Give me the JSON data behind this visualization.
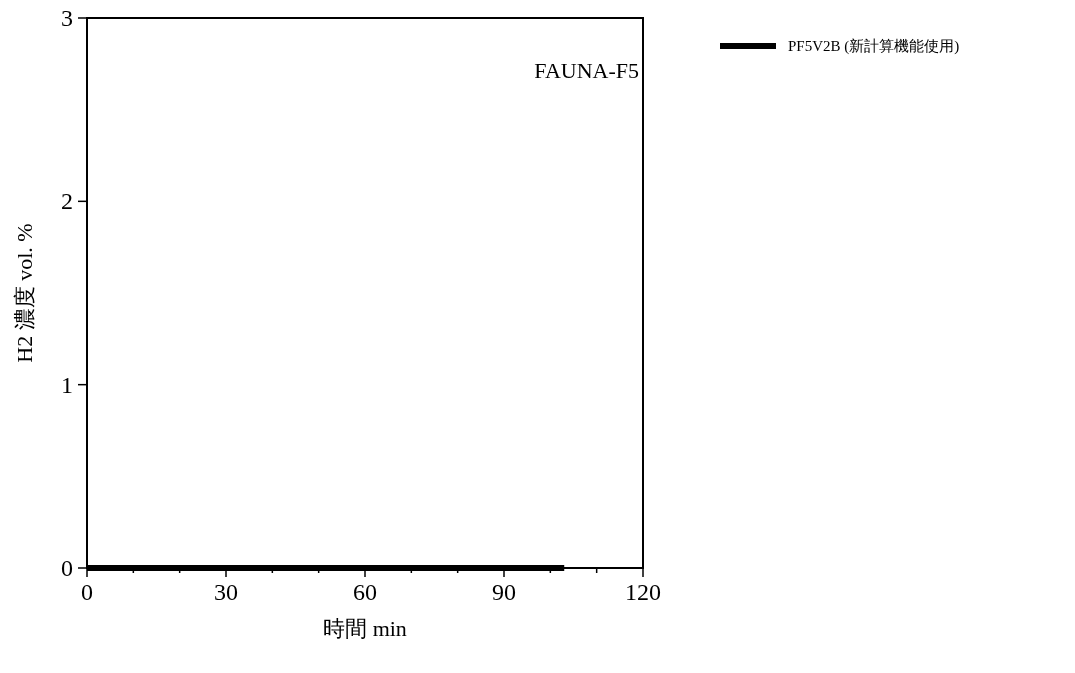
{
  "chart_data": {
    "type": "line",
    "xlabel": "時間 min",
    "ylabel": "H2 濃度 vol. %",
    "annotations": [
      "FAUNA-F5"
    ],
    "xlim": [
      0,
      120
    ],
    "xticks": [
      0,
      {
        "value": 10,
        "label": null
      },
      {
        "value": 20,
        "label": null
      },
      30,
      {
        "value": 40,
        "label": null
      },
      {
        "value": 50,
        "label": null
      },
      60,
      {
        "value": 70,
        "label": null
      },
      {
        "value": 80,
        "label": null
      },
      90,
      {
        "value": 100,
        "label": null
      },
      {
        "value": 110,
        "label": null
      },
      120
    ],
    "ylim": [
      0,
      3
    ],
    "yticks": [
      0,
      1,
      2,
      3
    ],
    "series": [
      {
        "name": "PF5V2B (新計算機能使用)",
        "color": "#000000",
        "x": [
          0,
          103
        ],
        "values": [
          0,
          0
        ]
      }
    ],
    "legend": "top right",
    "grid": false,
    "marker": "none",
    "line_style": "solid"
  }
}
